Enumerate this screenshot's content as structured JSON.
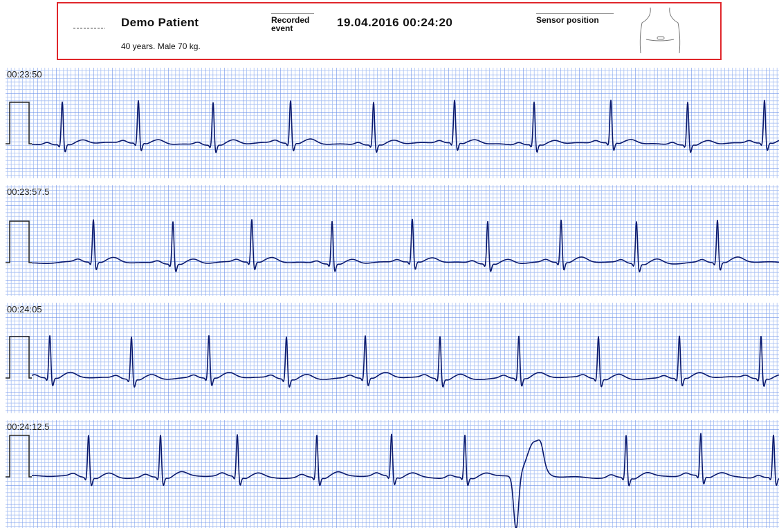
{
  "header": {
    "name": "Demo Patient",
    "details": "40 years. Male 70 kg.",
    "event_label": "Recorded event",
    "timestamp": "19.04.2016 00:24:20",
    "sensor_label": "Sensor position"
  },
  "strips": [
    {
      "time": "00:23:50"
    },
    {
      "time": "00:23:57.5"
    },
    {
      "time": "00:24:05"
    },
    {
      "time": "00:24:12.5"
    }
  ]
}
